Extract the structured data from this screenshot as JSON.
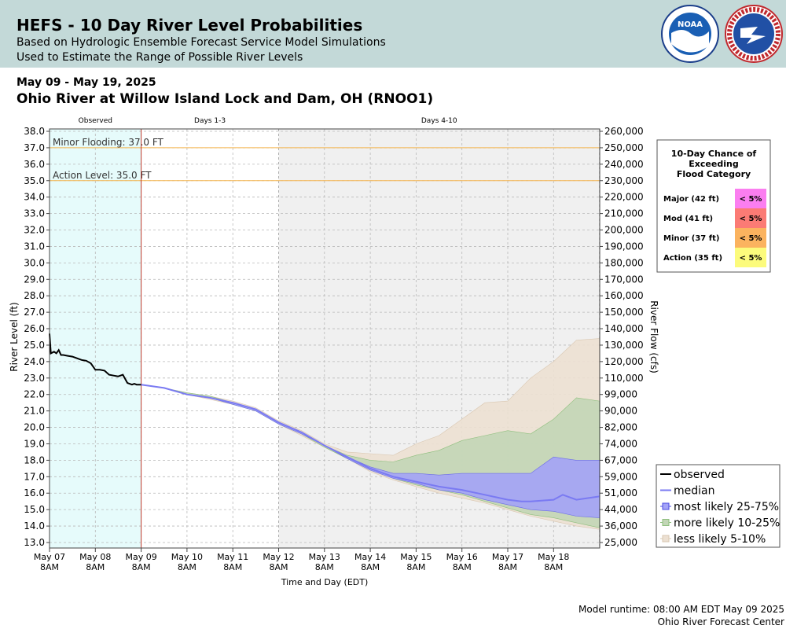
{
  "header": {
    "title": "HEFS - 10 Day River Level Probabilities",
    "subtitle1": "Based on Hydrologic Ensemble Forecast Service Model Simulations",
    "subtitle2": "Used to Estimate the Range of Possible River Levels",
    "logos": {
      "noaa": "NOAA",
      "nws": "NATIONAL WEATHER SERVICE"
    }
  },
  "date_range": "May 09 - May 19, 2025",
  "location": "Ohio River at Willow Island Lock and Dam, OH (RNOO1)",
  "footer": {
    "runtime": "Model runtime: 08:00 AM EDT May 09 2025",
    "center": "Ohio River Forecast Center"
  },
  "colors": {
    "observed_bg": "#e6fbfb",
    "days4_10_bg": "#f0f0f0",
    "threshold_line": "#f4b24a",
    "now_line": "#c0392b",
    "band_5_10": "#ece0d2",
    "band_10_25": "#c2d6b6",
    "band_25_75": "#a3a3f7",
    "median": "#7a7af2",
    "observed": "#000000"
  },
  "chart_data": {
    "type": "area",
    "xlabel": "Time and Day (EDT)",
    "ylabel": "River Level (ft)",
    "y2label": "River Flow (cfs)",
    "ylim": [
      13.0,
      38.0
    ],
    "grid": true,
    "period_labels": [
      "Observed",
      "Days 1-3",
      "Days 4-10"
    ],
    "x_ticks": [
      {
        "d": "May 07",
        "t": "8AM"
      },
      {
        "d": "May 08",
        "t": "8AM"
      },
      {
        "d": "May 09",
        "t": "8AM"
      },
      {
        "d": "May 10",
        "t": "8AM"
      },
      {
        "d": "May 11",
        "t": "8AM"
      },
      {
        "d": "May 12",
        "t": "8AM"
      },
      {
        "d": "May 13",
        "t": "8AM"
      },
      {
        "d": "May 14",
        "t": "8AM"
      },
      {
        "d": "May 15",
        "t": "8AM"
      },
      {
        "d": "May 16",
        "t": "8AM"
      },
      {
        "d": "May 17",
        "t": "8AM"
      },
      {
        "d": "May 18",
        "t": "8AM"
      }
    ],
    "y_ticks": [
      "38.0",
      "37.0",
      "36.0",
      "35.0",
      "34.0",
      "33.0",
      "32.0",
      "31.0",
      "30.0",
      "29.0",
      "28.0",
      "27.0",
      "26.0",
      "25.0",
      "24.0",
      "23.0",
      "22.0",
      "21.0",
      "20.0",
      "19.0",
      "18.0",
      "17.0",
      "16.0",
      "15.0",
      "14.0",
      "13.0"
    ],
    "y2_ticks": [
      "260,000",
      "250,000",
      "240,000",
      "230,000",
      "220,000",
      "210,000",
      "200,000",
      "190,000",
      "180,000",
      "170,000",
      "160,000",
      "150,000",
      "140,000",
      "130,000",
      "120,000",
      "110,000",
      "99,000",
      "90,000",
      "82,000",
      "74,000",
      "67,000",
      "59,000",
      "51,000",
      "44,000",
      "36,000",
      "25,000"
    ],
    "thresholds": [
      {
        "label": "Minor Flooding: 37.0 FT",
        "value": 37.0
      },
      {
        "label": "Action Level: 35.0 FT",
        "value": 35.0
      }
    ],
    "forecast_start_x": 2.0,
    "observed": {
      "x": [
        0.0,
        0.03,
        0.1,
        0.15,
        0.2,
        0.25,
        0.3,
        0.4,
        0.5,
        0.6,
        0.7,
        0.8,
        0.9,
        1.0,
        1.1,
        1.2,
        1.3,
        1.4,
        1.5,
        1.6,
        1.7,
        1.8,
        1.85,
        1.9,
        1.95,
        2.0
      ],
      "y": [
        25.7,
        24.5,
        24.6,
        24.5,
        24.7,
        24.4,
        24.4,
        24.35,
        24.3,
        24.2,
        24.1,
        24.05,
        23.9,
        23.5,
        23.5,
        23.45,
        23.2,
        23.15,
        23.1,
        23.2,
        22.7,
        22.6,
        22.65,
        22.6,
        22.6,
        22.6
      ]
    },
    "median": {
      "x": [
        2,
        2.5,
        3,
        3.5,
        4,
        4.5,
        5,
        5.5,
        6,
        6.5,
        7,
        7.5,
        8,
        8.5,
        9,
        9.5,
        10,
        10.3,
        10.5,
        11,
        11.2,
        11.5,
        12
      ],
      "y": [
        22.6,
        22.4,
        22.0,
        21.8,
        21.5,
        21.1,
        20.3,
        19.7,
        18.9,
        18.2,
        17.5,
        17.0,
        16.7,
        16.4,
        16.2,
        15.9,
        15.6,
        15.5,
        15.5,
        15.6,
        15.9,
        15.6,
        15.8
      ]
    },
    "bands": [
      {
        "name": "less likely 5-10%",
        "x": [
          2,
          2.5,
          3,
          3.5,
          4,
          4.5,
          5,
          5.5,
          6,
          6.5,
          7,
          7.5,
          8,
          8.5,
          9,
          9.5,
          10,
          10.5,
          11,
          11.5,
          12
        ],
        "upper": [
          22.6,
          22.4,
          22.1,
          21.9,
          21.6,
          21.2,
          20.4,
          19.8,
          19.0,
          18.5,
          18.4,
          18.3,
          19.0,
          19.5,
          20.5,
          21.5,
          21.6,
          23.0,
          24.0,
          25.3,
          25.4
        ],
        "lower": [
          22.6,
          22.4,
          22.0,
          21.7,
          21.4,
          21.0,
          20.2,
          19.5,
          18.8,
          18.1,
          17.3,
          16.8,
          16.4,
          16.0,
          15.7,
          15.4,
          15.0,
          14.6,
          14.3,
          14.0,
          13.8
        ]
      },
      {
        "name": "more likely 10-25%",
        "x": [
          2,
          2.5,
          3,
          3.5,
          4,
          4.5,
          5,
          5.5,
          6,
          6.5,
          7,
          7.5,
          8,
          8.5,
          9,
          9.5,
          10,
          10.5,
          11,
          11.5,
          12
        ],
        "upper": [
          22.6,
          22.4,
          22.1,
          21.9,
          21.5,
          21.1,
          20.3,
          19.7,
          18.9,
          18.3,
          18.0,
          17.9,
          18.3,
          18.6,
          19.2,
          19.5,
          19.8,
          19.6,
          20.5,
          21.8,
          21.6
        ],
        "lower": [
          22.6,
          22.4,
          22.0,
          21.8,
          21.4,
          21.0,
          20.2,
          19.6,
          18.8,
          18.1,
          17.4,
          16.9,
          16.5,
          16.2,
          15.9,
          15.5,
          15.1,
          14.7,
          14.5,
          14.2,
          13.9
        ]
      },
      {
        "name": "most likely 25-75%",
        "x": [
          2,
          2.5,
          3,
          3.5,
          4,
          4.5,
          5,
          5.5,
          6,
          6.5,
          7,
          7.5,
          8,
          8.5,
          9,
          9.5,
          10,
          10.5,
          11,
          11.5,
          12
        ],
        "upper": [
          22.6,
          22.4,
          22.0,
          21.8,
          21.5,
          21.1,
          20.3,
          19.7,
          18.9,
          18.2,
          17.6,
          17.2,
          17.2,
          17.1,
          17.2,
          17.2,
          17.2,
          17.2,
          18.2,
          18.0,
          18.0
        ],
        "lower": [
          22.6,
          22.4,
          22.0,
          21.8,
          21.4,
          21.0,
          20.2,
          19.6,
          18.9,
          18.1,
          17.4,
          16.9,
          16.6,
          16.2,
          16.0,
          15.6,
          15.3,
          15.0,
          14.9,
          14.6,
          14.5
        ]
      }
    ],
    "legend": {
      "position": "bottom-right",
      "items": [
        {
          "label": "observed",
          "kind": "observed"
        },
        {
          "label": "median",
          "kind": "median"
        },
        {
          "label": "most likely 25-75%",
          "kind": "band_25_75"
        },
        {
          "label": "more likely 10-25%",
          "kind": "band_10_25"
        },
        {
          "label": "less likely 5-10%",
          "kind": "band_5_10"
        }
      ]
    },
    "flood_table": {
      "title": [
        "10-Day Chance of",
        "Exceeding",
        "Flood Category"
      ],
      "rows": [
        {
          "category": "Major (42 ft)",
          "chance": "< 5%",
          "color": "#fb7ef0"
        },
        {
          "category": "Mod (41 ft)",
          "chance": "< 5%",
          "color": "#fb7b75"
        },
        {
          "category": "Minor (37 ft)",
          "chance": "< 5%",
          "color": "#fbb35f"
        },
        {
          "category": "Action (35 ft)",
          "chance": "< 5%",
          "color": "#fcfb7c"
        }
      ]
    }
  }
}
